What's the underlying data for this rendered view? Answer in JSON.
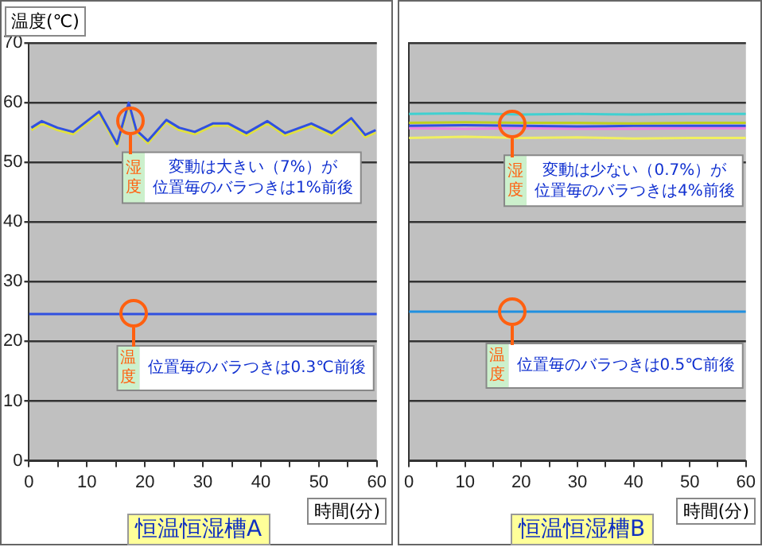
{
  "chart_data": [
    {
      "type": "line",
      "title": "恒温恒湿槽A",
      "xlabel": "時間(分)",
      "ylabel": "温度(℃)",
      "xlim": [
        0,
        60
      ],
      "ylim": [
        0,
        70
      ],
      "xticks": [
        0,
        {
          "value": 5,
          "label": null
        },
        10,
        {
          "value": 15,
          "label": null
        },
        20,
        {
          "value": 25,
          "label": null
        },
        30,
        {
          "value": 35,
          "label": null
        },
        40,
        {
          "value": 45,
          "label": null
        },
        50,
        {
          "value": 55,
          "label": null
        },
        60
      ],
      "yticks": [
        0,
        10,
        20,
        30,
        40,
        50,
        60,
        70
      ],
      "grid": "y",
      "marker": "none",
      "series": [
        {
          "color": "#3050e0",
          "x": [
            0.4,
            2.2,
            4.9,
            7.6,
            12.1,
            15.2,
            17.2,
            18.5,
            20.5,
            23.7,
            25.9,
            28.6,
            31.7,
            34.4,
            37.5,
            41.1,
            44.2,
            48.7,
            52.2,
            55.6,
            58.0,
            59.8
          ],
          "values": [
            55.8,
            56.9,
            55.8,
            55.1,
            58.5,
            53.1,
            60,
            55.4,
            53.6,
            57.1,
            55.8,
            55.1,
            56.5,
            56.5,
            54.9,
            56.9,
            54.9,
            56.5,
            54.9,
            57.4,
            54.6,
            55.4
          ]
        },
        {
          "color": "#e0e040",
          "x": [
            0.4,
            2.2,
            4.9,
            7.6,
            12.1,
            15.2,
            17.2,
            18.5,
            20.5,
            23.7,
            25.9,
            28.6,
            31.7,
            34.4,
            37.5,
            41.1,
            44.2,
            48.7,
            52.2,
            55.6,
            58.0,
            59.8
          ],
          "values": [
            55.4,
            56.5,
            55.4,
            54.7,
            58.1,
            52.7,
            59.6,
            55.0,
            53.2,
            56.7,
            55.4,
            54.7,
            56.1,
            56.1,
            54.5,
            56.5,
            54.5,
            56.1,
            54.5,
            57.0,
            54.2,
            55.0
          ]
        },
        {
          "color": "#3050e0",
          "x": [
            0,
            60
          ],
          "values": [
            24.6,
            24.6
          ]
        }
      ],
      "annotations": [
        {
          "text": "湿度",
          "x": 17.5,
          "y": 57
        },
        "変動は大きい（7%）が",
        "位置毎のバラつきは1%前後",
        {
          "text": "温度",
          "x": 18,
          "y": 24.6
        },
        "位置毎のバラつきは0.3℃前後"
      ]
    },
    {
      "type": "line",
      "title": "恒温恒湿槽B",
      "xlabel": "時間(分)",
      "xlim": [
        0,
        60
      ],
      "ylim": [
        0,
        70
      ],
      "xticks": [
        0,
        {
          "value": 5,
          "label": null
        },
        10,
        {
          "value": 15,
          "label": null
        },
        20,
        {
          "value": 25,
          "label": null
        },
        30,
        {
          "value": 35,
          "label": null
        },
        40,
        {
          "value": 45,
          "label": null
        },
        50,
        {
          "value": 55,
          "label": null
        },
        60
      ],
      "yticks": [
        0,
        10,
        20,
        30,
        40,
        50,
        60,
        70
      ],
      "grid": "y",
      "marker": "none",
      "tick_labels": "x",
      "series": [
        {
          "color": "#40d0d0",
          "x": [
            0,
            10,
            20,
            30,
            40,
            50,
            60
          ],
          "values": [
            58.1,
            58.2,
            58.0,
            58.1,
            58.0,
            58.1,
            58.1
          ]
        },
        {
          "color": "#c0d020",
          "x": [
            0,
            10,
            20,
            30,
            40,
            50,
            60
          ],
          "values": [
            56.6,
            56.7,
            56.6,
            56.6,
            56.5,
            56.6,
            56.6
          ]
        },
        {
          "color": "#3050e0",
          "x": [
            0,
            10,
            20,
            30,
            40,
            50,
            60
          ],
          "values": [
            56.1,
            56.2,
            56.1,
            56.0,
            56.1,
            56.1,
            56.1
          ]
        },
        {
          "color": "#f080e0",
          "x": [
            0,
            10,
            20,
            30,
            40,
            50,
            60
          ],
          "values": [
            55.7,
            55.6,
            55.7,
            55.6,
            55.6,
            55.7,
            55.7
          ]
        },
        {
          "color": "#f0f060",
          "x": [
            0,
            10,
            20,
            30,
            40,
            50,
            60
          ],
          "values": [
            54.1,
            54.3,
            54.1,
            54.2,
            54.0,
            54.1,
            54.1
          ]
        },
        {
          "color": "#2090e0",
          "x": [
            0,
            60
          ],
          "values": [
            25.0,
            25.0
          ]
        }
      ],
      "annotations": [
        {
          "text": "湿度",
          "x": 18.5,
          "y": 56.5
        },
        "変動は少ない（0.7%）が",
        "位置毎のバラつきは4%前後",
        {
          "text": "温度",
          "x": 18.5,
          "y": 25
        },
        "位置毎のバラつきは0.5℃前後"
      ]
    }
  ]
}
